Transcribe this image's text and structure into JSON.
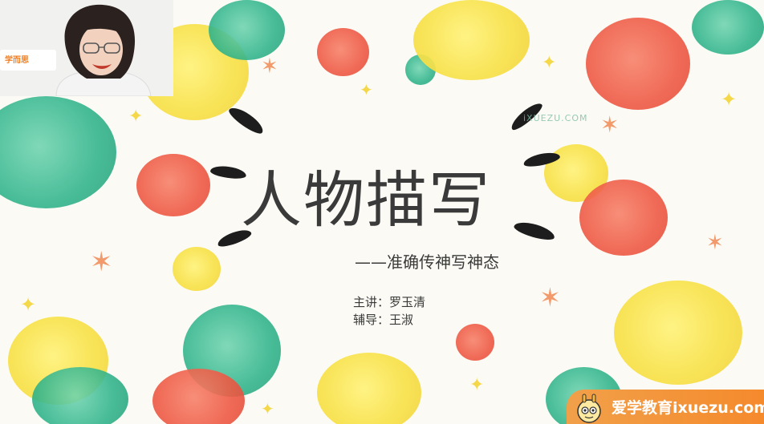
{
  "slide": {
    "title": "人物描写",
    "subtitle": "——准确传神写神态",
    "speaker_line": "主讲：罗玉清",
    "assistant_line": "辅导：王淑",
    "watermark": "iXUEZU.COM"
  },
  "webcam": {
    "logo_text": "学而思"
  },
  "badge": {
    "text": "爱学教育ixuezu.com"
  },
  "colors": {
    "yellow": "#f8e24a",
    "red": "#ee5a45",
    "green": "#2fb38a",
    "badge": "#f58a2c"
  }
}
